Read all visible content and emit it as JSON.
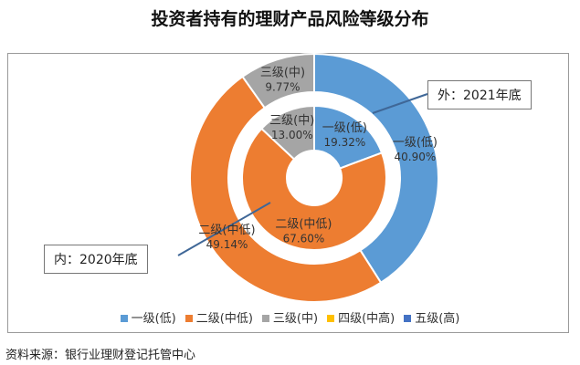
{
  "title": "投资者持有的理财产品风险等级分布",
  "source": "资料来源：银行业理财登记托管中心",
  "callouts": {
    "outer": "外：2021年底",
    "inner": "内：2020年底"
  },
  "colors": {
    "一级(低)": "#5b9bd5",
    "二级(中低)": "#ed7d31",
    "三级(中)": "#a5a5a5",
    "四级(中高)": "#ffc000",
    "五级(高)": "#4472c4"
  },
  "chart_data": {
    "type": "pie",
    "legend": [
      "一级(低)",
      "二级(中低)",
      "三级(中)",
      "四级(中高)",
      "五级(高)"
    ],
    "legend_position": "bottom",
    "series": [
      {
        "ring": "outer",
        "slices": [
          {
            "category": "一级(低)",
            "value": 40.9,
            "name": "一级(低)",
            "label": "40.90%"
          },
          {
            "category": "二级(中低)",
            "value": 49.14,
            "name": "二级(中低)",
            "label": "49.14%"
          },
          {
            "category": "三级(中)",
            "value": 9.77,
            "name": "三级(中)",
            "label": "9.77%"
          }
        ]
      },
      {
        "ring": "inner",
        "slices": [
          {
            "category": "一级(低)",
            "value": 19.32,
            "name": "一级(低)",
            "label": "19.32%"
          },
          {
            "category": "二级(中低)",
            "value": 67.6,
            "name": "二级(中低)",
            "label": "67.60%"
          },
          {
            "category": "三级(中)",
            "value": 13.0,
            "name": "三级(中)",
            "label": "13.00%"
          }
        ]
      }
    ]
  }
}
